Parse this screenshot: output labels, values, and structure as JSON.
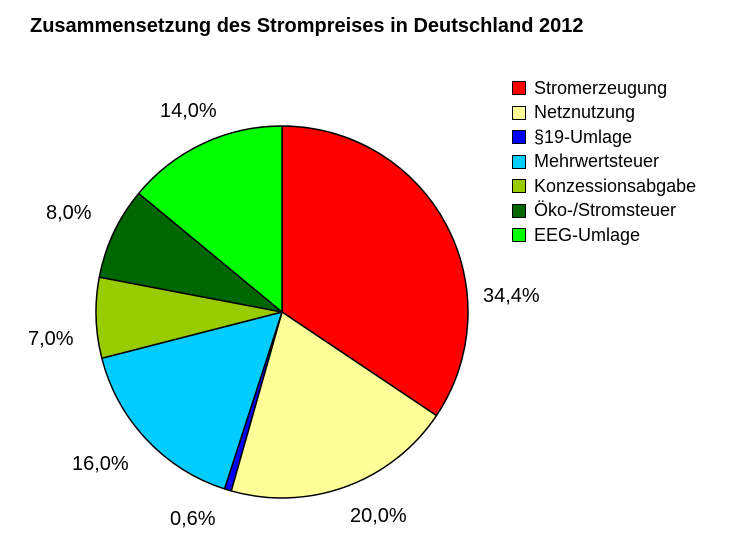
{
  "chart_data": {
    "type": "pie",
    "title": "Zusammensetzung des Strompreises in Deutschland 2012",
    "categories": [
      "Stromerzeugung",
      "Netznutzung",
      "§19-Umlage",
      "Mehrwertsteuer",
      "Konzessionsabgabe",
      "Öko-/Stromsteuer",
      "EEG-Umlage"
    ],
    "values": [
      34.4,
      20.0,
      0.6,
      16.0,
      7.0,
      8.0,
      14.0
    ],
    "value_labels": [
      "34,4%",
      "20,0%",
      "0,6%",
      "16,0%",
      "7,0%",
      "8,0%",
      "14,0%"
    ],
    "colors": [
      "#ff0000",
      "#ffff99",
      "#0000ff",
      "#00ccff",
      "#99cc00",
      "#006600",
      "#00ff00"
    ],
    "start_angle": "12 o'clock",
    "direction": "clockwise",
    "legend_position": "right"
  }
}
